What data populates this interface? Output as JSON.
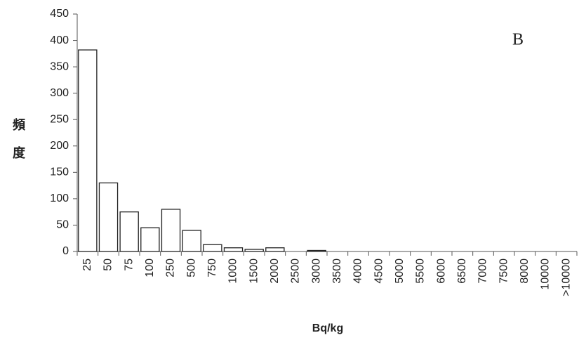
{
  "chart_data": {
    "type": "bar",
    "annotation": "B",
    "ylabel": "頻度",
    "xlabel": "Bq/kg",
    "categories": [
      "25",
      "50",
      "75",
      "100",
      "250",
      "500",
      "750",
      "1000",
      "1500",
      "2000",
      "2500",
      "3000",
      "3500",
      "4000",
      "4500",
      "5000",
      "5500",
      "6000",
      "6500",
      "7000",
      "7500",
      "8000",
      "10000",
      ">10000"
    ],
    "values": [
      382,
      130,
      75,
      45,
      80,
      40,
      13,
      7,
      4,
      7,
      0,
      2,
      0,
      0,
      0,
      0,
      0,
      0,
      0,
      0,
      0,
      0,
      0,
      0
    ],
    "color": "#ffffff",
    "ylim": [
      0,
      450
    ],
    "yticks": [
      0,
      50,
      100,
      150,
      200,
      250,
      300,
      350,
      400,
      450
    ],
    "grid": false
  }
}
